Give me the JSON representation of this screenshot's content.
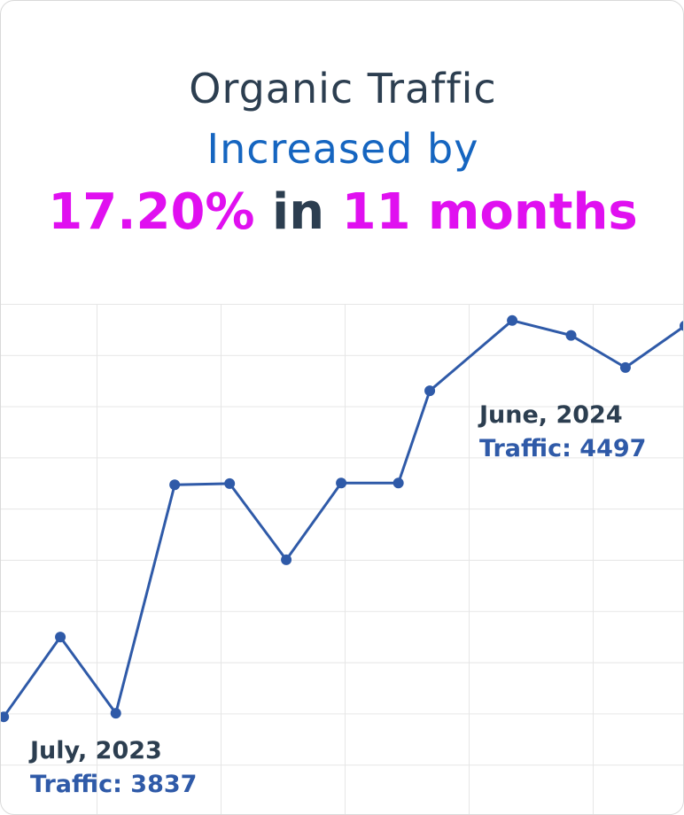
{
  "chart_data": {
    "type": "line",
    "title": "Organic Traffic",
    "subtitle": "Increased by",
    "headline": {
      "change": "17.20%",
      "joiner": "in",
      "period": "11 months"
    },
    "x": [
      0.05,
      1.06,
      2.05,
      3.1,
      4.08,
      5.09,
      6.07,
      7.09,
      7.65,
      9.12,
      10.17,
      11.14,
      12.2
    ],
    "values": [
      3831,
      3965,
      3837,
      4221,
      4223,
      4095,
      4224,
      4224,
      4379,
      4497,
      4472,
      4418,
      4488
    ],
    "color": "#2f5aa8",
    "xlim": [
      0,
      12.2
    ],
    "ylim": [
      3672,
      4525
    ],
    "annotations": [
      {
        "label": "July, 2023",
        "text": "Traffic: 3837"
      },
      {
        "label": "June, 2024",
        "text": "Traffic: 4497"
      }
    ]
  }
}
